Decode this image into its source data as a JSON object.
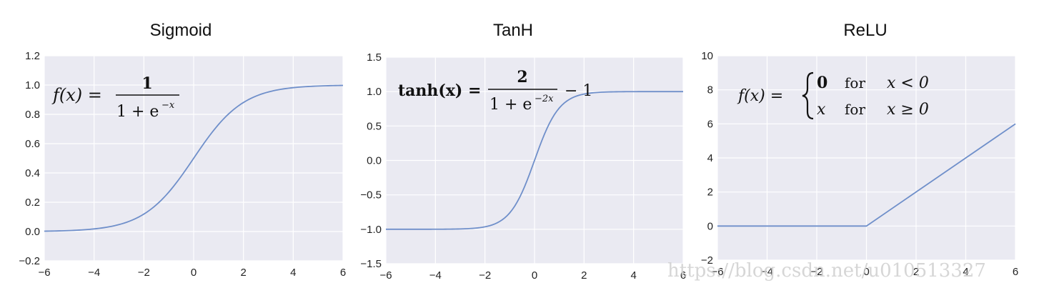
{
  "chart_data": [
    {
      "type": "line",
      "title": "Sigmoid",
      "formula": {
        "lhs": "f(x) =",
        "numerator": "1",
        "denominator": "1 + e",
        "denominator_exp": "−x"
      },
      "xlim": [
        -6,
        6
      ],
      "ylim": [
        -0.2,
        1.2
      ],
      "xticks": [
        -6,
        -4,
        -2,
        0,
        2,
        4,
        6
      ],
      "yticks": [
        -0.2,
        0.0,
        0.2,
        0.4,
        0.6,
        0.8,
        1.0,
        1.2
      ],
      "xtick_labels": [
        "−6",
        "−4",
        "−2",
        "0",
        "2",
        "4",
        "6"
      ],
      "ytick_labels": [
        "−0.2",
        "0.0",
        "0.2",
        "0.4",
        "0.6",
        "0.8",
        "1.0",
        "1.2"
      ],
      "grid": true,
      "x": [
        -6,
        -5,
        -4,
        -3,
        -2,
        -1,
        0,
        1,
        2,
        3,
        4,
        5,
        6
      ],
      "values": [
        0.002,
        0.007,
        0.018,
        0.047,
        0.119,
        0.269,
        0.5,
        0.731,
        0.881,
        0.953,
        0.982,
        0.993,
        0.998
      ]
    },
    {
      "type": "line",
      "title": "TanH",
      "formula": {
        "lhs": "tanh(x) =",
        "numerator": "2",
        "denominator": "1 + e",
        "denominator_exp": "−2x",
        "tail": "− 1"
      },
      "xlim": [
        -6,
        6
      ],
      "ylim": [
        -1.5,
        1.5
      ],
      "xticks": [
        -6,
        -4,
        -2,
        0,
        2,
        4,
        6
      ],
      "yticks": [
        -1.5,
        -1.0,
        -0.5,
        0.0,
        0.5,
        1.0,
        1.5
      ],
      "xtick_labels": [
        "−6",
        "−4",
        "−2",
        "0",
        "2",
        "4",
        "6"
      ],
      "ytick_labels": [
        "−1.5",
        "−1.0",
        "−0.5",
        "0.0",
        "0.5",
        "1.0",
        "1.5"
      ],
      "grid": true,
      "x": [
        -6,
        -5,
        -4,
        -3,
        -2,
        -1,
        0,
        1,
        2,
        3,
        4,
        5,
        6
      ],
      "values": [
        -1.0,
        -1.0,
        -0.999,
        -0.995,
        -0.964,
        -0.762,
        0.0,
        0.762,
        0.964,
        0.995,
        0.999,
        1.0,
        1.0
      ]
    },
    {
      "type": "line",
      "title": "ReLU",
      "formula": {
        "lhs": "f(x) =",
        "case1_value": "0",
        "case1_word": "for",
        "case1_cond": "x < 0",
        "case2_value": "x",
        "case2_word": "for",
        "case2_cond": "x ≥ 0"
      },
      "xlim": [
        -6,
        6
      ],
      "ylim": [
        -2,
        10
      ],
      "xticks": [
        -6,
        -4,
        -2,
        0,
        2,
        4,
        6
      ],
      "yticks": [
        -2,
        0,
        2,
        4,
        6,
        8,
        10
      ],
      "xtick_labels": [
        "−6",
        "−4",
        "−2",
        "0",
        "2",
        "4",
        "6"
      ],
      "ytick_labels": [
        "−2",
        "0",
        "2",
        "4",
        "6",
        "8",
        "10"
      ],
      "grid": true,
      "x": [
        -6,
        0,
        6
      ],
      "values": [
        0,
        0,
        6
      ]
    }
  ],
  "watermark": "https://blog.csdn.net/u010513327",
  "colors": {
    "plot_bg": "#eaeaf2",
    "grid": "#ffffff",
    "line": "#6f8fca"
  }
}
